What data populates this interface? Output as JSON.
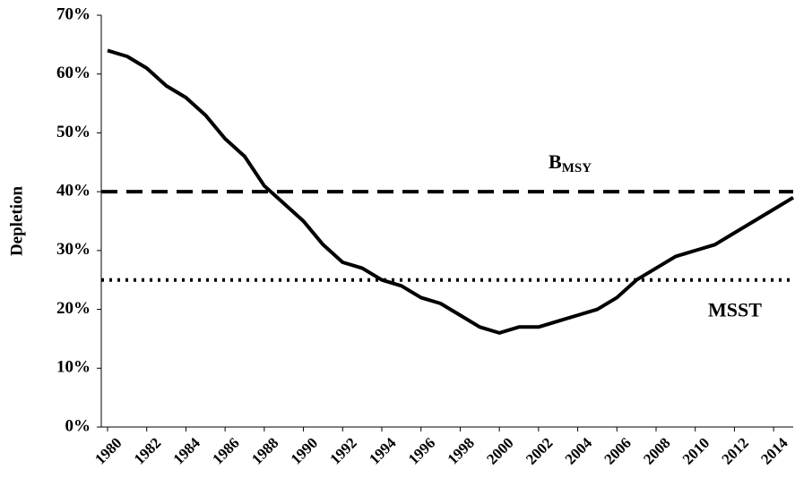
{
  "chart_data": {
    "type": "line",
    "y_label": "Depletion",
    "x": [
      1980,
      1981,
      1982,
      1983,
      1984,
      1985,
      1986,
      1987,
      1988,
      1989,
      1990,
      1991,
      1992,
      1993,
      1994,
      1995,
      1996,
      1997,
      1998,
      1999,
      2000,
      2001,
      2002,
      2003,
      2004,
      2005,
      2006,
      2007,
      2008,
      2009,
      2010,
      2011,
      2012,
      2013,
      2014,
      2015
    ],
    "series": [
      {
        "color": "#000000",
        "values": [
          64,
          63,
          61,
          58,
          56,
          53,
          49,
          46,
          41,
          38,
          35,
          31,
          28,
          27,
          25,
          24,
          22,
          21,
          19,
          17,
          16,
          17,
          17,
          18,
          19,
          20,
          22,
          25,
          27,
          29,
          30,
          31,
          33,
          35,
          37,
          39
        ]
      }
    ],
    "xlim": [
      1980,
      2015
    ],
    "xticks": [
      1980,
      1982,
      1984,
      1986,
      1988,
      1990,
      1992,
      1994,
      1996,
      1998,
      2000,
      2002,
      2004,
      2006,
      2008,
      2010,
      2012,
      2014
    ],
    "ylim": [
      0,
      70
    ],
    "yticks": [
      {
        "value": 0,
        "label": "0%"
      },
      {
        "value": 10,
        "label": "10%"
      },
      {
        "value": 20,
        "label": "20%"
      },
      {
        "value": 30,
        "label": "30%"
      },
      {
        "value": 40,
        "label": "40%"
      },
      {
        "value": 50,
        "label": "50%"
      },
      {
        "value": 60,
        "label": "60%"
      },
      {
        "value": 70,
        "label": "70%"
      }
    ],
    "grid": false,
    "reference_lines": [
      {
        "value": 40,
        "label": "B",
        "label_sub": "MSY",
        "style": "dashed"
      },
      {
        "value": 25,
        "label": "MSST",
        "style": "dotted"
      }
    ]
  }
}
